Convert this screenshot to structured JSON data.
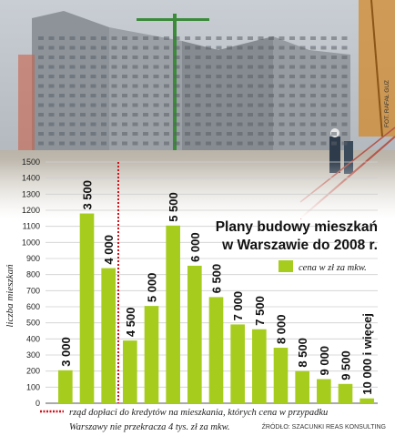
{
  "photo_credit": "FOT. RAFAŁ GUZ",
  "source": "ŹRÓDŁO: SZACUNKI REAS KONSULTING",
  "chart_data": {
    "type": "bar",
    "title_line1": "Plany budowy mieszkań",
    "title_line2": "w Warszawie do 2008 r.",
    "ylabel": "liczba mieszkań",
    "legend_label": "cena w zł za mkw.",
    "ylim": [
      0,
      1500
    ],
    "yticks": [
      0,
      100,
      200,
      300,
      400,
      500,
      600,
      700,
      800,
      900,
      1000,
      1100,
      1200,
      1300,
      1400,
      1500
    ],
    "categories": [
      "3 000",
      "3 500",
      "4 000",
      "4 500",
      "5 000",
      "5 500",
      "6 000",
      "6 500",
      "7 000",
      "7 500",
      "8 000",
      "8 500",
      "9 000",
      "9 500",
      "10 000 i więcej"
    ],
    "values": [
      205,
      1180,
      840,
      390,
      605,
      1105,
      855,
      660,
      490,
      460,
      345,
      200,
      150,
      120,
      30
    ],
    "bar_color": "#a6cc1e",
    "threshold_color": "#d0121b",
    "threshold_note_line1": "rząd dopłaci do kredytów na mieszkania, których cena w przypadku",
    "threshold_note_line2": "Warszawy nie przekracza 4 tys. zł za mkw."
  }
}
